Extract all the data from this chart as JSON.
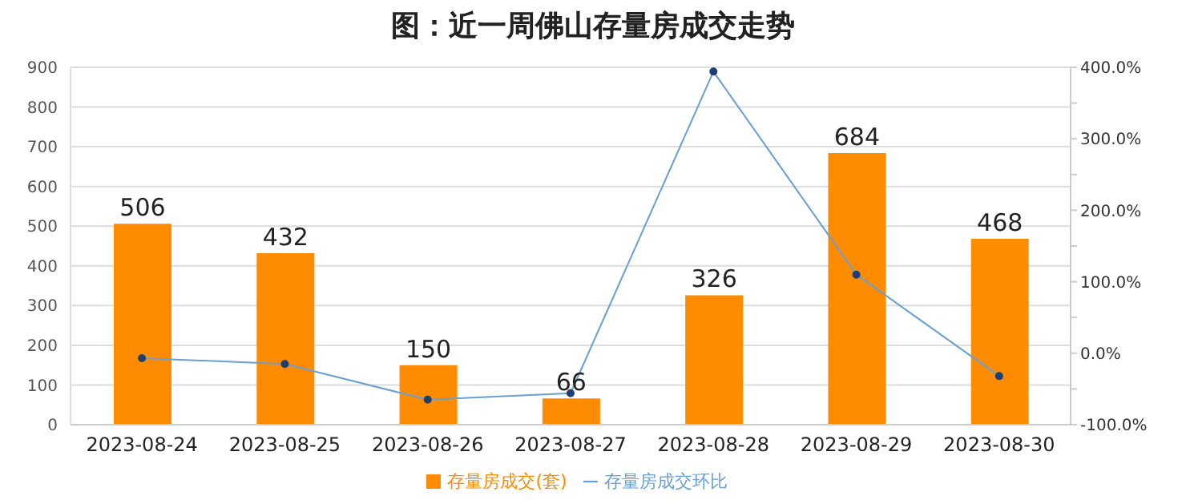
{
  "chart_data": {
    "type": "bar",
    "title": "图：近一周佛山存量房成交走势",
    "categories": [
      "2023-08-24",
      "2023-08-25",
      "2023-08-26",
      "2023-08-27",
      "2023-08-28",
      "2023-08-29",
      "2023-08-30"
    ],
    "series": [
      {
        "name": "存量房成交(套)",
        "color": "#ff8c00",
        "values": [
          506,
          432,
          150,
          66,
          326,
          684,
          468
        ],
        "value_labels": [
          "506",
          "432",
          "150",
          "66",
          "326",
          "684",
          "468"
        ]
      },
      {
        "name": "存量房成交环比",
        "type": "line",
        "axis": "y2",
        "color": "#6a9fd4",
        "marker": "circle",
        "values": [
          -7,
          -15,
          -65,
          -56,
          394,
          110,
          -32
        ]
      }
    ],
    "ylim": [
      0,
      900
    ],
    "yticks": [
      0,
      100,
      200,
      300,
      400,
      500,
      600,
      700,
      800,
      900
    ],
    "y2lim": [
      -100,
      400
    ],
    "y2ticks": [
      {
        "value": -100,
        "label": "-100.0%"
      },
      {
        "value": -50,
        "label": null
      },
      {
        "value": 0,
        "label": "0.0%"
      },
      {
        "value": 50,
        "label": null
      },
      {
        "value": 100,
        "label": "100.0%"
      },
      {
        "value": 150,
        "label": null
      },
      {
        "value": 200,
        "label": "200.0%"
      },
      {
        "value": 250,
        "label": null
      },
      {
        "value": 300,
        "label": "300.0%"
      },
      {
        "value": 350,
        "label": null
      },
      {
        "value": 400,
        "label": "400.0%"
      }
    ],
    "grid": "y",
    "legend": "bottom"
  }
}
